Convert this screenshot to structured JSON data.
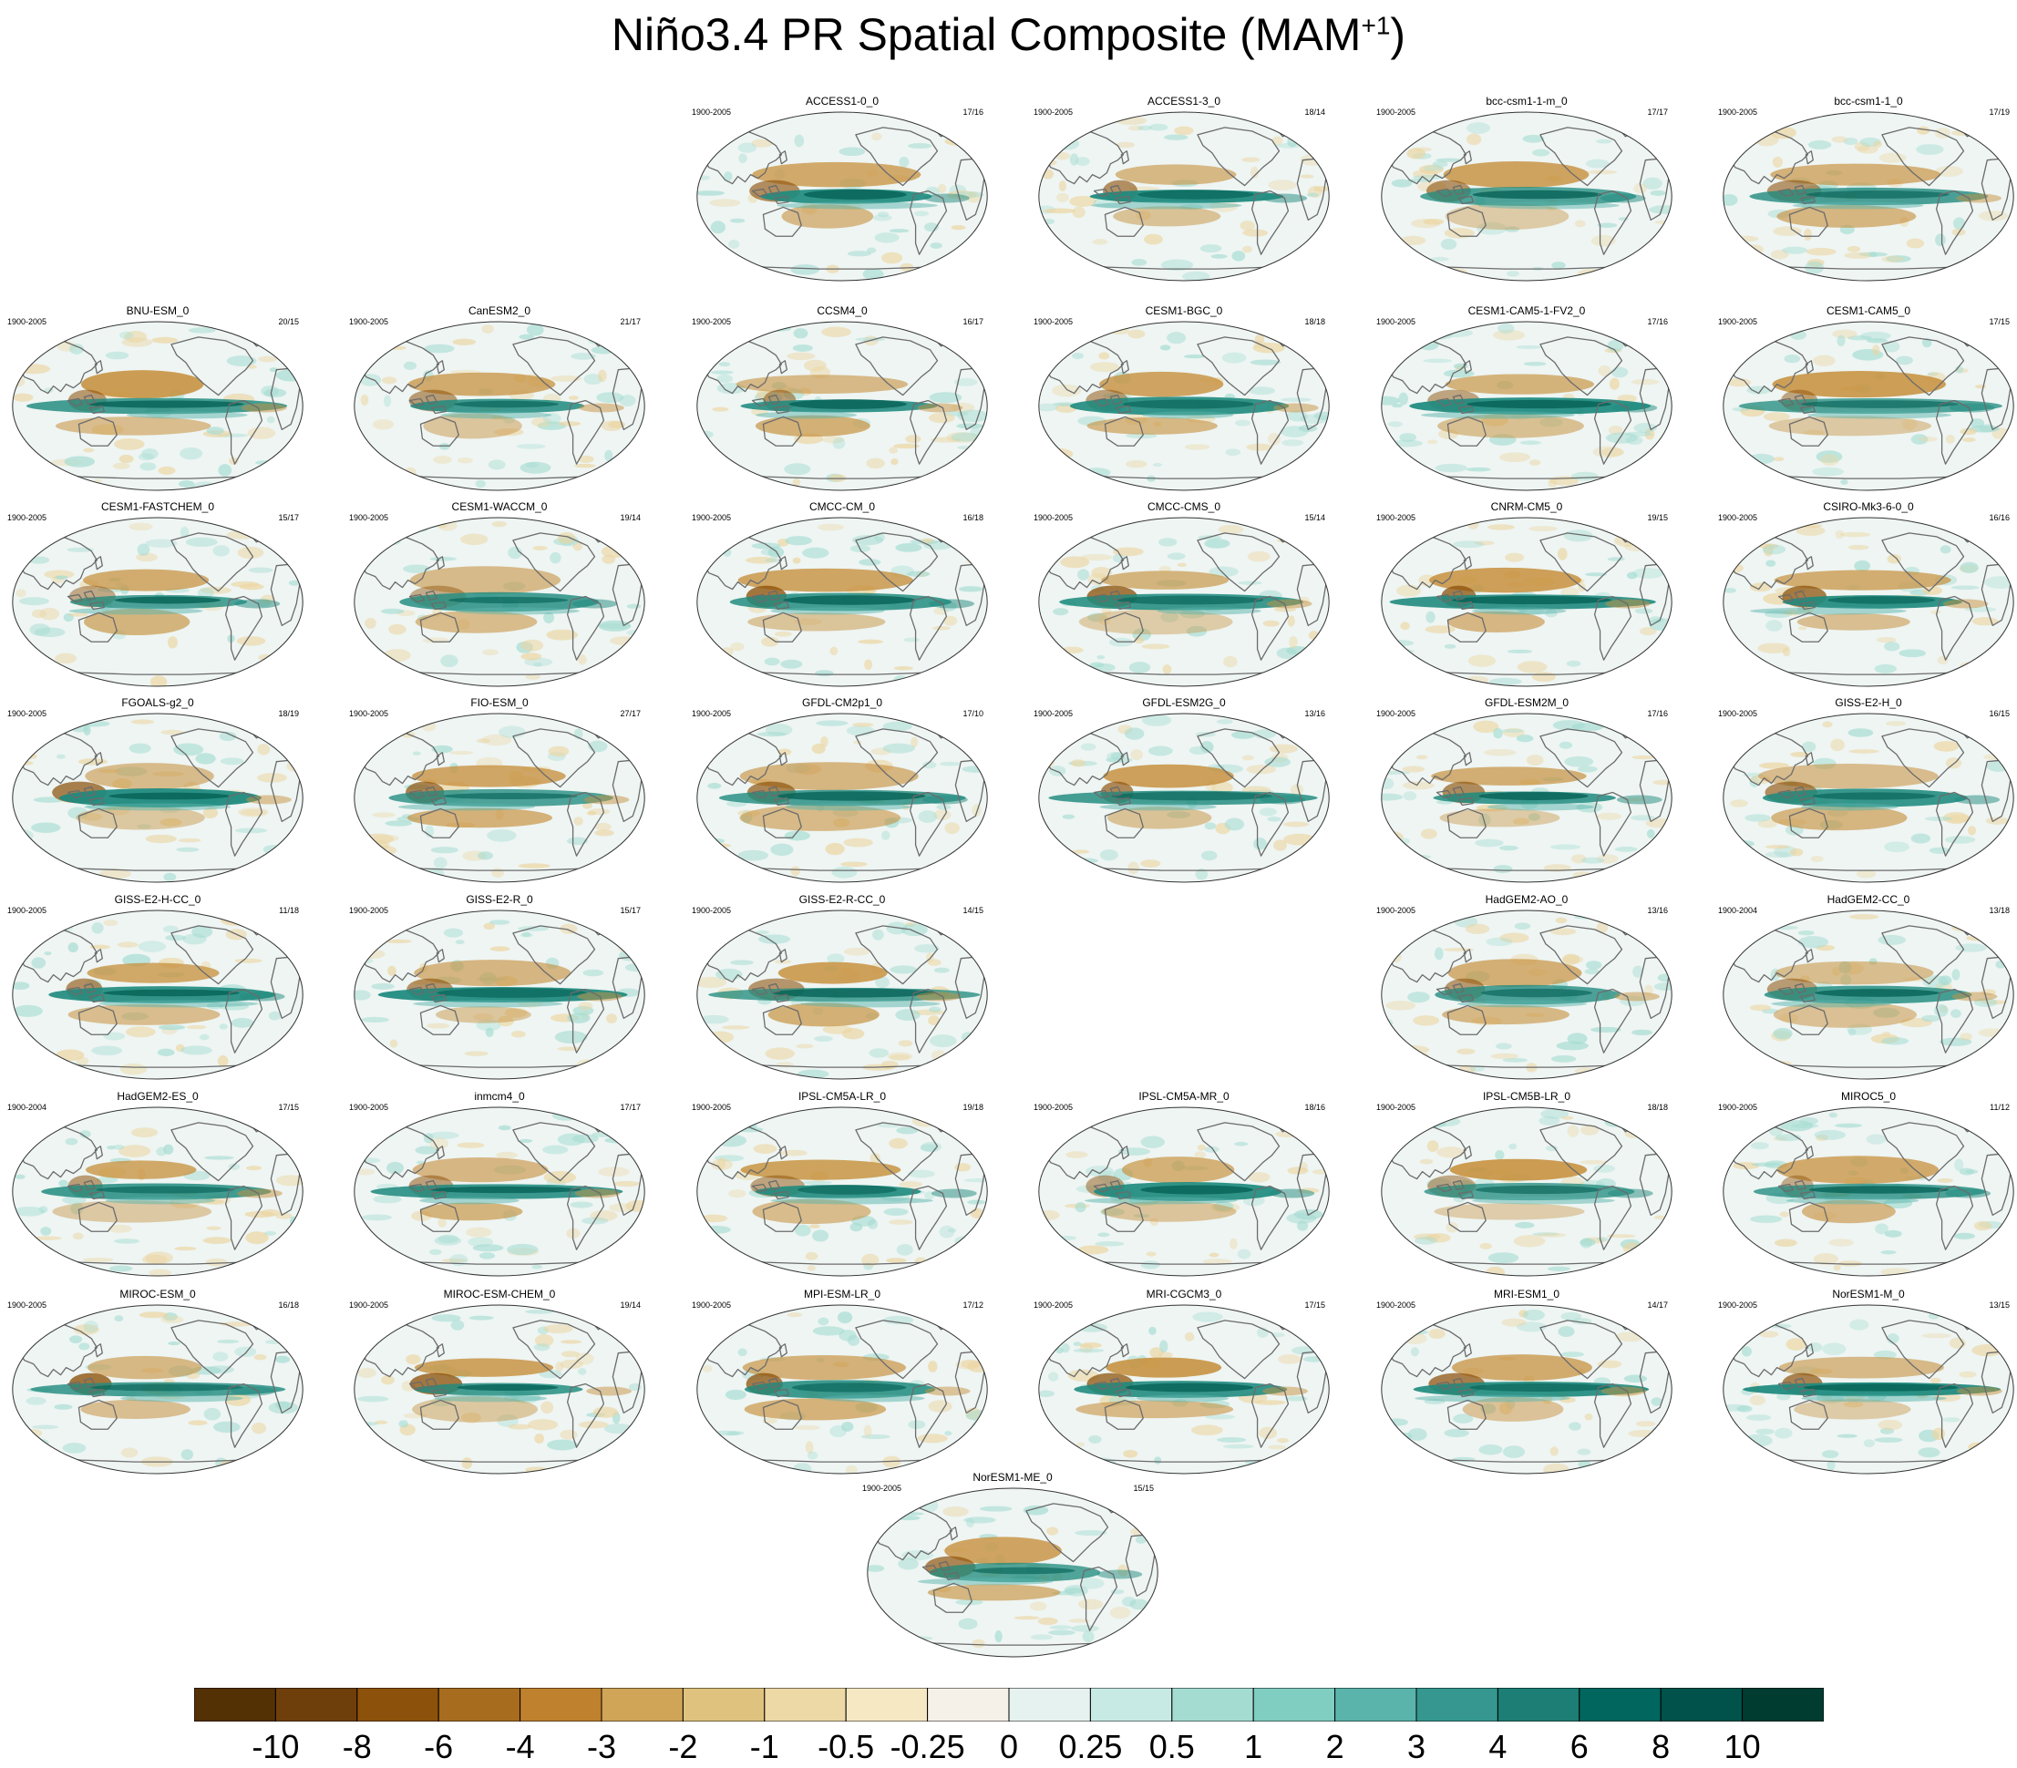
{
  "title": {
    "main": "Niño3.4 PR Spatial Composite (MAM",
    "sup": "+1",
    "close": ")"
  },
  "panels": [
    {
      "name": "ACCESS1-0_0",
      "period": "1900-2005",
      "count": "17/16"
    },
    {
      "name": "ACCESS1-3_0",
      "period": "1900-2005",
      "count": "18/14"
    },
    {
      "name": "bcc-csm1-1-m_0",
      "period": "1900-2005",
      "count": "17/17"
    },
    {
      "name": "bcc-csm1-1_0",
      "period": "1900-2005",
      "count": "17/19"
    },
    {
      "name": "BNU-ESM_0",
      "period": "1900-2005",
      "count": "20/15"
    },
    {
      "name": "CanESM2_0",
      "period": "1900-2005",
      "count": "21/17"
    },
    {
      "name": "CCSM4_0",
      "period": "1900-2005",
      "count": "16/17"
    },
    {
      "name": "CESM1-BGC_0",
      "period": "1900-2005",
      "count": "18/18"
    },
    {
      "name": "CESM1-CAM5-1-FV2_0",
      "period": "1900-2005",
      "count": "17/16"
    },
    {
      "name": "CESM1-CAM5_0",
      "period": "1900-2005",
      "count": "17/15"
    },
    {
      "name": "CESM1-FASTCHEM_0",
      "period": "1900-2005",
      "count": "15/17"
    },
    {
      "name": "CESM1-WACCM_0",
      "period": "1900-2005",
      "count": "19/14"
    },
    {
      "name": "CMCC-CM_0",
      "period": "1900-2005",
      "count": "16/18"
    },
    {
      "name": "CMCC-CMS_0",
      "period": "1900-2005",
      "count": "15/14"
    },
    {
      "name": "CNRM-CM5_0",
      "period": "1900-2005",
      "count": "19/15"
    },
    {
      "name": "CSIRO-Mk3-6-0_0",
      "period": "1900-2005",
      "count": "16/16"
    },
    {
      "name": "FGOALS-g2_0",
      "period": "1900-2005",
      "count": "18/19"
    },
    {
      "name": "FIO-ESM_0",
      "period": "1900-2005",
      "count": "27/17"
    },
    {
      "name": "GFDL-CM2p1_0",
      "period": "1900-2005",
      "count": "17/10"
    },
    {
      "name": "GFDL-ESM2G_0",
      "period": "1900-2005",
      "count": "13/16"
    },
    {
      "name": "GFDL-ESM2M_0",
      "period": "1900-2005",
      "count": "17/16"
    },
    {
      "name": "GISS-E2-H_0",
      "period": "1900-2005",
      "count": "16/15"
    },
    {
      "name": "GISS-E2-H-CC_0",
      "period": "1900-2005",
      "count": "11/18"
    },
    {
      "name": "GISS-E2-R_0",
      "period": "1900-2005",
      "count": "15/17"
    },
    {
      "name": "GISS-E2-R-CC_0",
      "period": "1900-2005",
      "count": "14/15"
    },
    {
      "name": "HadGEM2-AO_0",
      "period": "1900-2005",
      "count": "13/16"
    },
    {
      "name": "HadGEM2-CC_0",
      "period": "1900-2004",
      "count": "13/18"
    },
    {
      "name": "HadGEM2-ES_0",
      "period": "1900-2004",
      "count": "17/15"
    },
    {
      "name": "inmcm4_0",
      "period": "1900-2005",
      "count": "17/17"
    },
    {
      "name": "IPSL-CM5A-LR_0",
      "period": "1900-2005",
      "count": "19/18"
    },
    {
      "name": "IPSL-CM5A-MR_0",
      "period": "1900-2005",
      "count": "18/16"
    },
    {
      "name": "IPSL-CM5B-LR_0",
      "period": "1900-2005",
      "count": "18/18"
    },
    {
      "name": "MIROC5_0",
      "period": "1900-2005",
      "count": "11/12"
    },
    {
      "name": "MIROC-ESM_0",
      "period": "1900-2005",
      "count": "16/18"
    },
    {
      "name": "MIROC-ESM-CHEM_0",
      "period": "1900-2005",
      "count": "19/14"
    },
    {
      "name": "MPI-ESM-LR_0",
      "period": "1900-2005",
      "count": "17/12"
    },
    {
      "name": "MRI-CGCM3_0",
      "period": "1900-2005",
      "count": "17/15"
    },
    {
      "name": "MRI-ESM1_0",
      "period": "1900-2005",
      "count": "14/17"
    },
    {
      "name": "NorESM1-M_0",
      "period": "1900-2005",
      "count": "13/15"
    },
    {
      "name": "NorESM1-ME_0",
      "period": "1900-2005",
      "count": "15/15"
    }
  ],
  "colorbar": {
    "labels": [
      "-10",
      "-8",
      "-6",
      "-4",
      "-3",
      "-2",
      "-1",
      "-0.5",
      "-0.25",
      "0",
      "0.25",
      "0.5",
      "1",
      "2",
      "3",
      "4",
      "6",
      "8",
      "10"
    ],
    "colors": [
      "#543005",
      "#6f3f0b",
      "#8c510a",
      "#a86c1f",
      "#bf812d",
      "#d0a558",
      "#dfc27d",
      "#edd9a6",
      "#f6e8c3",
      "#f5f1e8",
      "#e6f2f0",
      "#c7eae5",
      "#a5dcd2",
      "#80cdc1",
      "#5ab4ac",
      "#35978f",
      "#1c7e75",
      "#01665e",
      "#00524a",
      "#003c30"
    ]
  },
  "map_colors": {
    "ocean": "#eef5f3",
    "land_line": "#6b6b6b",
    "wet": "#1f8a7e",
    "wet_dark": "#035e53",
    "dry": "#c7913f",
    "dry_dark": "#8c510a"
  }
}
